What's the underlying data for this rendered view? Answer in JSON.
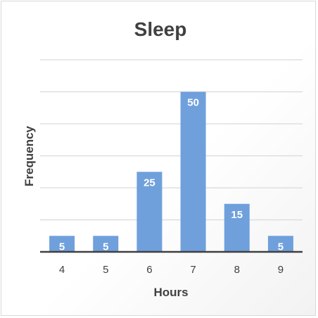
{
  "chart_data": {
    "type": "bar",
    "title": "Sleep",
    "xlabel": "Hours",
    "ylabel": "Frequency",
    "categories": [
      "4",
      "5",
      "6",
      "7",
      "8",
      "9"
    ],
    "values": [
      5,
      5,
      25,
      50,
      15,
      5
    ],
    "data_labels": [
      "5",
      "5",
      "25",
      "50",
      "15",
      "5"
    ],
    "ylim": [
      0,
      60
    ],
    "y_gridline_step": 10,
    "y_tick_labels_shown": false,
    "grid": true,
    "legend": "none",
    "bar_color": "#6fa0dc",
    "gridline_color": "#d9d9d9",
    "axis_color": "#404040"
  }
}
